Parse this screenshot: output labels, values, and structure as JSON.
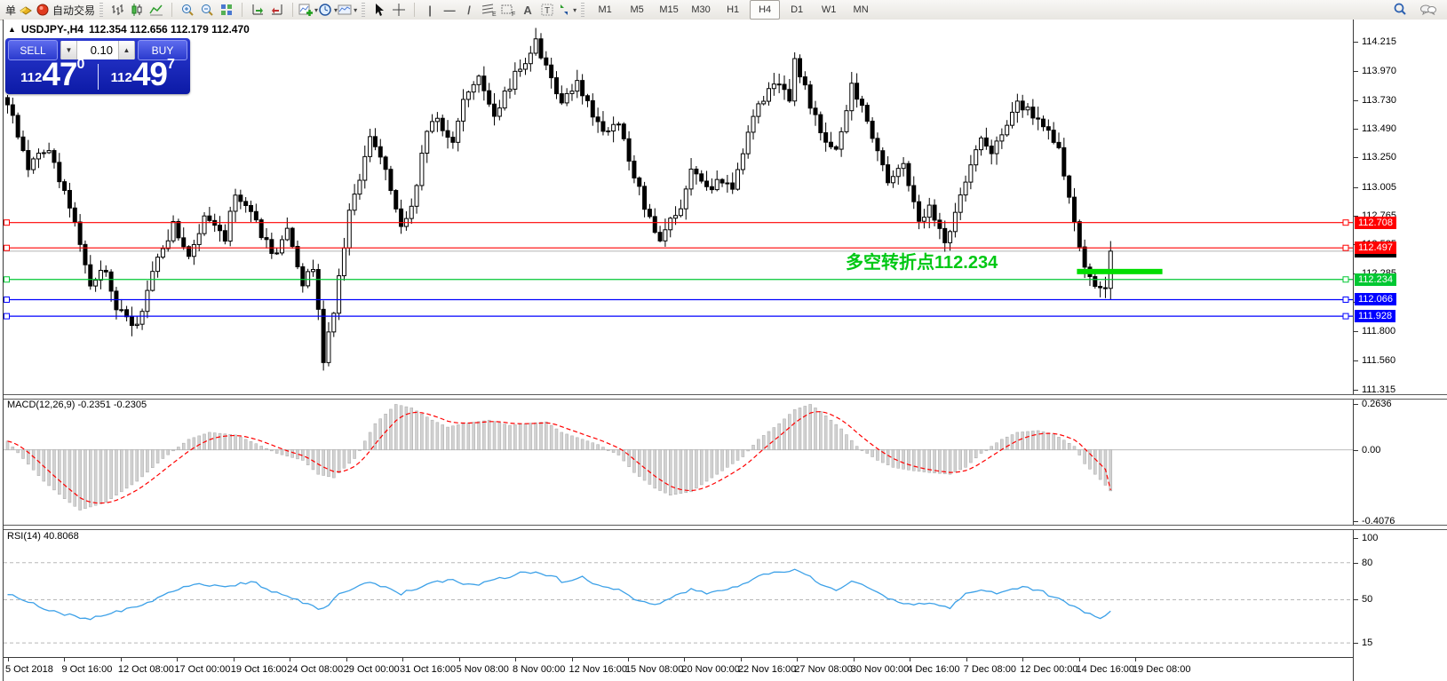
{
  "toolbar": {
    "order_label": "单",
    "autotrade_label": "自动交易",
    "timeframes": [
      "M1",
      "M5",
      "M15",
      "M30",
      "H1",
      "H4",
      "D1",
      "W1",
      "MN"
    ],
    "active_timeframe": "H4",
    "text_tool_a": "A",
    "text_tool_t": "T"
  },
  "chart": {
    "title_symbol": "USDJPY-,H4",
    "title_ohlc": "112.354 112.656 112.179 112.470",
    "annotation_text": "多空转折点112.234",
    "annotation_color": "#00c814"
  },
  "trade_panel": {
    "sell_label": "SELL",
    "buy_label": "BUY",
    "volume": "0.10",
    "sell_small": "112",
    "sell_big": "47",
    "sell_sup": "0",
    "buy_small": "112",
    "buy_big": "49",
    "buy_sup": "7"
  },
  "indicators": {
    "macd_label": "MACD(12,26,9) -0.2351 -0.2305",
    "rsi_label": "RSI(14) 40.8068"
  },
  "colors": {
    "resistance": "#ff0000",
    "pivot": "#00c832",
    "support": "#0000ff",
    "current_price": "#000000",
    "current_line": "#b4b4b4",
    "macd_hist": "#d2d2d2",
    "macd_hist_edge": "#a8a8a8",
    "macd_signal": "#ff0000",
    "rsi_line": "#3da1e8",
    "trade_blue": "#1a2ac0"
  },
  "chart_data": [
    {
      "type": "candlestick",
      "symbol": "USDJPY-",
      "timeframe": "H4",
      "title_ohlc": {
        "open": 112.354,
        "high": 112.656,
        "low": 112.179,
        "close": 112.47
      },
      "current_price": 112.47,
      "current_price_label": "112.470",
      "ylim": [
        111.263,
        114.4
      ],
      "y_axis_ticks": [
        114.215,
        113.97,
        113.73,
        113.49,
        113.25,
        113.005,
        112.765,
        112.525,
        112.285,
        112.045,
        111.8,
        111.56,
        111.315
      ],
      "x_axis_labels": [
        "5 Oct 2018",
        "9 Oct 16:00",
        "12 Oct 08:00",
        "17 Oct 00:00",
        "19 Oct 16:00",
        "24 Oct 08:00",
        "29 Oct 00:00",
        "31 Oct 16:00",
        "5 Nov 08:00",
        "8 Nov 00:00",
        "12 Nov 16:00",
        "15 Nov 08:00",
        "20 Nov 00:00",
        "22 Nov 16:00",
        "27 Nov 08:00",
        "30 Nov 00:00",
        "4 Dec 16:00",
        "7 Dec 08:00",
        "12 Dec 00:00",
        "14 Dec 16:00",
        "19 Dec 08:00"
      ],
      "levels": [
        {
          "price": 112.708,
          "label": "112.708",
          "color": "#ff0000",
          "kind": "resistance"
        },
        {
          "price": 112.497,
          "label": "112.497",
          "color": "#ff0000",
          "kind": "resistance"
        },
        {
          "price": 112.234,
          "label": "112.234",
          "color": "#00c832",
          "kind": "pivot"
        },
        {
          "price": 112.066,
          "label": "112.066",
          "color": "#0000ff",
          "kind": "support"
        },
        {
          "price": 111.928,
          "label": "111.928",
          "color": "#0000ff",
          "kind": "support"
        }
      ],
      "trend_segment": {
        "price": 112.3,
        "bar_from": 206.5,
        "bar_to": 223,
        "color": "#00dd00"
      },
      "bar_count": 214,
      "close_anchors": [
        [
          0,
          113.72
        ],
        [
          4,
          113.16
        ],
        [
          8,
          113.34
        ],
        [
          13,
          112.71
        ],
        [
          16,
          112.2
        ],
        [
          19,
          112.34
        ],
        [
          21,
          112.01
        ],
        [
          25,
          111.83
        ],
        [
          26,
          112.01
        ],
        [
          29,
          112.42
        ],
        [
          32,
          112.68
        ],
        [
          35,
          112.42
        ],
        [
          38,
          112.75
        ],
        [
          42,
          112.57
        ],
        [
          44,
          112.97
        ],
        [
          47,
          112.83
        ],
        [
          51,
          112.42
        ],
        [
          54,
          112.64
        ],
        [
          57,
          112.2
        ],
        [
          59,
          112.34
        ],
        [
          61,
          111.57
        ],
        [
          63,
          111.98
        ],
        [
          66,
          112.79
        ],
        [
          70,
          113.38
        ],
        [
          73,
          113.16
        ],
        [
          76,
          112.71
        ],
        [
          78,
          112.86
        ],
        [
          81,
          113.46
        ],
        [
          83,
          113.57
        ],
        [
          86,
          113.38
        ],
        [
          88,
          113.71
        ],
        [
          91,
          113.9
        ],
        [
          94,
          113.6
        ],
        [
          96,
          113.79
        ],
        [
          99,
          114.01
        ],
        [
          102,
          114.2
        ],
        [
          105,
          113.94
        ],
        [
          107,
          113.71
        ],
        [
          110,
          113.9
        ],
        [
          113,
          113.6
        ],
        [
          115,
          113.46
        ],
        [
          118,
          113.57
        ],
        [
          120,
          113.2
        ],
        [
          123,
          112.86
        ],
        [
          126,
          112.57
        ],
        [
          127,
          112.68
        ],
        [
          130,
          112.83
        ],
        [
          132,
          113.12
        ],
        [
          135,
          112.97
        ],
        [
          138,
          113.08
        ],
        [
          140,
          113.01
        ],
        [
          143,
          113.46
        ],
        [
          145,
          113.68
        ],
        [
          148,
          113.86
        ],
        [
          151,
          113.75
        ],
        [
          152,
          114.08
        ],
        [
          155,
          113.68
        ],
        [
          157,
          113.46
        ],
        [
          160,
          113.34
        ],
        [
          163,
          113.83
        ],
        [
          165,
          113.71
        ],
        [
          168,
          113.3
        ],
        [
          170,
          113.01
        ],
        [
          173,
          113.2
        ],
        [
          176,
          112.68
        ],
        [
          178,
          112.83
        ],
        [
          181,
          112.53
        ],
        [
          183,
          112.75
        ],
        [
          186,
          113.23
        ],
        [
          188,
          113.38
        ],
        [
          190,
          113.27
        ],
        [
          193,
          113.53
        ],
        [
          195,
          113.68
        ],
        [
          198,
          113.6
        ],
        [
          201,
          113.49
        ],
        [
          203,
          113.34
        ],
        [
          206,
          112.71
        ],
        [
          208,
          112.38
        ],
        [
          210,
          112.2
        ],
        [
          212,
          112.13
        ],
        [
          213,
          112.47
        ]
      ]
    },
    {
      "type": "bar",
      "name": "MACD(12,26,9)",
      "current_values": [
        -0.2351,
        -0.2305
      ],
      "ylim": [
        -0.434,
        0.298
      ],
      "y_axis_ticks": [
        {
          "text": "0.2636",
          "value": 0.2636
        },
        {
          "text": "0.00",
          "value": 0
        },
        {
          "text": "-0.4076",
          "value": -0.4076
        }
      ],
      "anchors": [
        [
          0,
          0.05
        ],
        [
          3,
          -0.05
        ],
        [
          7,
          -0.18
        ],
        [
          11,
          -0.28
        ],
        [
          14,
          -0.345
        ],
        [
          19,
          -0.3
        ],
        [
          25,
          -0.18
        ],
        [
          30,
          -0.05
        ],
        [
          35,
          0.06
        ],
        [
          39,
          0.1
        ],
        [
          44,
          0.085
        ],
        [
          48,
          0.035
        ],
        [
          52,
          -0.02
        ],
        [
          57,
          -0.06
        ],
        [
          60,
          -0.14
        ],
        [
          63,
          -0.16
        ],
        [
          67,
          -0.05
        ],
        [
          71,
          0.15
        ],
        [
          75,
          0.26
        ],
        [
          78,
          0.24
        ],
        [
          82,
          0.17
        ],
        [
          85,
          0.13
        ],
        [
          88,
          0.15
        ],
        [
          93,
          0.17
        ],
        [
          97,
          0.14
        ],
        [
          100,
          0.15
        ],
        [
          104,
          0.16
        ],
        [
          107,
          0.1
        ],
        [
          111,
          0.06
        ],
        [
          114,
          0.03
        ],
        [
          118,
          -0.03
        ],
        [
          121,
          -0.13
        ],
        [
          125,
          -0.22
        ],
        [
          128,
          -0.26
        ],
        [
          132,
          -0.24
        ],
        [
          135,
          -0.18
        ],
        [
          138,
          -0.12
        ],
        [
          142,
          -0.04
        ],
        [
          145,
          0.06
        ],
        [
          149,
          0.15
        ],
        [
          152,
          0.23
        ],
        [
          155,
          0.26
        ],
        [
          157,
          0.22
        ],
        [
          161,
          0.12
        ],
        [
          164,
          0.02
        ],
        [
          168,
          -0.06
        ],
        [
          171,
          -0.1
        ],
        [
          175,
          -0.12
        ],
        [
          178,
          -0.13
        ],
        [
          182,
          -0.14
        ],
        [
          185,
          -0.1
        ],
        [
          188,
          -0.02
        ],
        [
          192,
          0.06
        ],
        [
          195,
          0.1
        ],
        [
          199,
          0.11
        ],
        [
          202,
          0.09
        ],
        [
          206,
          0.02
        ],
        [
          208,
          -0.08
        ],
        [
          211,
          -0.17
        ],
        [
          213,
          -0.2351
        ]
      ]
    },
    {
      "type": "line",
      "name": "RSI(14)",
      "current_value": 40.8068,
      "ylim": [
        0,
        100
      ],
      "level_lines": [
        80,
        50,
        15
      ],
      "y_axis_ticks": [
        {
          "text": "100",
          "value": 100
        },
        {
          "text": "80",
          "value": 80
        },
        {
          "text": "50",
          "value": 50
        },
        {
          "text": "15",
          "value": 15
        }
      ],
      "anchors": [
        [
          0,
          55
        ],
        [
          6,
          45
        ],
        [
          11,
          38
        ],
        [
          16,
          35
        ],
        [
          21,
          40
        ],
        [
          26,
          45
        ],
        [
          32,
          58
        ],
        [
          37,
          62
        ],
        [
          42,
          60
        ],
        [
          47,
          65
        ],
        [
          52,
          55
        ],
        [
          57,
          48
        ],
        [
          61,
          42
        ],
        [
          64,
          55
        ],
        [
          70,
          65
        ],
        [
          73,
          60
        ],
        [
          76,
          55
        ],
        [
          81,
          62
        ],
        [
          85,
          66
        ],
        [
          90,
          62
        ],
        [
          96,
          68
        ],
        [
          100,
          73
        ],
        [
          105,
          70
        ],
        [
          107,
          65
        ],
        [
          111,
          68
        ],
        [
          114,
          62
        ],
        [
          118,
          58
        ],
        [
          121,
          50
        ],
        [
          125,
          45
        ],
        [
          128,
          52
        ],
        [
          132,
          58
        ],
        [
          135,
          55
        ],
        [
          138,
          57
        ],
        [
          143,
          65
        ],
        [
          145,
          70
        ],
        [
          149,
          72
        ],
        [
          152,
          74
        ],
        [
          155,
          68
        ],
        [
          157,
          62
        ],
        [
          160,
          58
        ],
        [
          163,
          65
        ],
        [
          165,
          62
        ],
        [
          168,
          55
        ],
        [
          171,
          50
        ],
        [
          175,
          45
        ],
        [
          178,
          48
        ],
        [
          182,
          44
        ],
        [
          185,
          55
        ],
        [
          188,
          58
        ],
        [
          192,
          55
        ],
        [
          195,
          60
        ],
        [
          199,
          58
        ],
        [
          202,
          52
        ],
        [
          206,
          45
        ],
        [
          209,
          38
        ],
        [
          211,
          35
        ],
        [
          213,
          40.8
        ]
      ]
    }
  ]
}
